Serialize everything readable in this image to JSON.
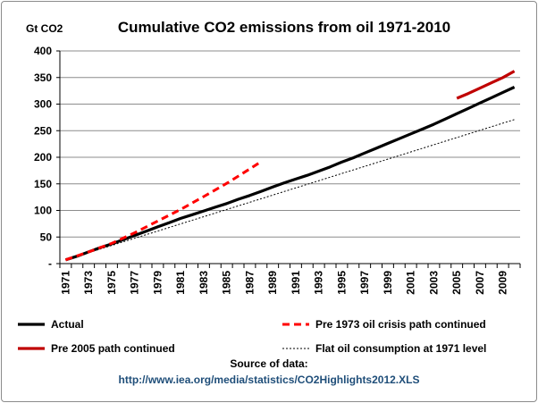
{
  "chart_data": {
    "type": "line",
    "title": "Cumulative CO2 emissions from oil 1971-2010",
    "ylabel": "Gt CO2",
    "xlabel": "",
    "ylim": [
      0,
      400
    ],
    "yticks": [
      0,
      50,
      100,
      150,
      200,
      250,
      300,
      350,
      400
    ],
    "ytick_labels": [
      "-",
      "50",
      "100",
      "150",
      "200",
      "250",
      "300",
      "350",
      "400"
    ],
    "xlim": [
      1971,
      2010
    ],
    "xtick_labels": [
      "1971",
      "1973",
      "1975",
      "1977",
      "1979",
      "1981",
      "1983",
      "1985",
      "1987",
      "1989",
      "1991",
      "1993",
      "1995",
      "1997",
      "1999",
      "2001",
      "2003",
      "2005",
      "2007",
      "2009"
    ],
    "grid": "horizontal",
    "legend_position": "bottom",
    "series": [
      {
        "name": "Actual",
        "color": "#000000",
        "style": "solid-thick",
        "x": [
          1971,
          1972,
          1973,
          1974,
          1975,
          1976,
          1977,
          1978,
          1979,
          1980,
          1981,
          1982,
          1983,
          1984,
          1985,
          1986,
          1987,
          1988,
          1989,
          1990,
          1991,
          1992,
          1993,
          1994,
          1995,
          1996,
          1997,
          1998,
          1999,
          2000,
          2001,
          2002,
          2003,
          2004,
          2005,
          2006,
          2007,
          2008,
          2009,
          2010
        ],
        "y": [
          7,
          14,
          22,
          30,
          37,
          45,
          53,
          61,
          69,
          77,
          85,
          92,
          99,
          106,
          113,
          121,
          128,
          136,
          144,
          152,
          159,
          166,
          174,
          182,
          191,
          199,
          208,
          217,
          226,
          235,
          244,
          253,
          262,
          272,
          282,
          292,
          302,
          312,
          322,
          332
        ]
      },
      {
        "name": "Pre 1973 oil crisis path continued",
        "color": "#ff0000",
        "style": "dashed-thick",
        "x": [
          1971,
          1973,
          1975,
          1977,
          1979,
          1981,
          1983,
          1985,
          1987,
          1988
        ],
        "y": [
          7,
          22,
          38,
          58,
          80,
          102,
          126,
          151,
          178,
          192
        ]
      },
      {
        "name": "Pre 2005 path continued",
        "color": "#c00000",
        "style": "solid-thick",
        "x": [
          2005,
          2006,
          2007,
          2008,
          2009,
          2010
        ],
        "y": [
          311,
          320,
          330,
          340,
          350,
          362
        ]
      },
      {
        "name": "Flat oil consumption at 1971 level",
        "color": "#000000",
        "style": "dotted-thin",
        "x": [
          1971,
          2010
        ],
        "y": [
          7,
          271
        ]
      }
    ],
    "source_label": "Source of data:",
    "source_url": "http://www.iea.org/media/statistics/CO2Highlights2012.XLS"
  }
}
